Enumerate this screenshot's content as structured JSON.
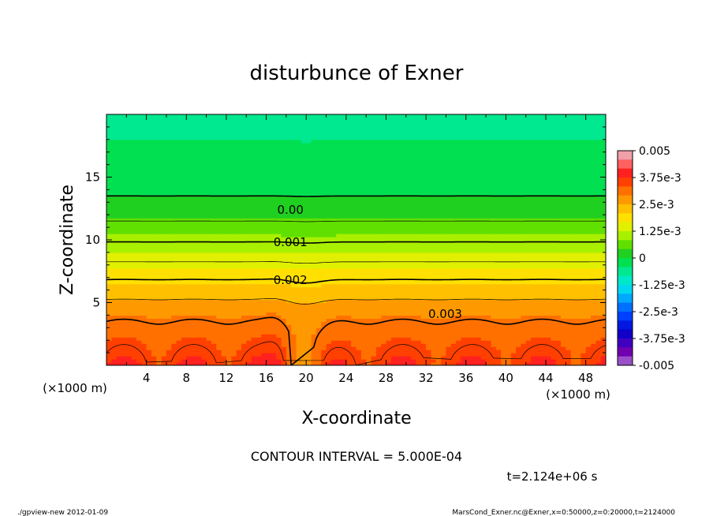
{
  "chart_data": {
    "type": "heatmap",
    "title": "disturbunce of Exner",
    "xlabel": "X-coordinate",
    "ylabel": "Z-coordinate",
    "x_unit": "(×1000 m)",
    "y_unit": "(×1000 m)",
    "xlim": [
      0,
      50
    ],
    "ylim": [
      0,
      20
    ],
    "x_ticks": [
      4,
      8,
      12,
      16,
      20,
      24,
      28,
      32,
      36,
      40,
      44,
      48
    ],
    "y_ticks": [
      5,
      10,
      15
    ],
    "contour_interval_text": "CONTOUR INTERVAL = 5.000E-04",
    "time_text": "t=2.124e+06 s",
    "contour_labels": [
      {
        "text": "0.00",
        "x": 17.0,
        "z": 12.4
      },
      {
        "text": "0.001",
        "x": 17.0,
        "z": 9.8
      },
      {
        "text": "0.002",
        "x": 17.0,
        "z": 6.8
      },
      {
        "text": "0.003",
        "x": 32.5,
        "z": 4.1
      }
    ],
    "colorbar": {
      "min": -0.005,
      "max": 0.005,
      "tick_labels": [
        "0.005",
        "3.75e-3",
        "2.5e-3",
        "1.25e-3",
        "0",
        "-1.25e-3",
        "-2.5e-3",
        "-3.75e-3",
        "-0.005"
      ],
      "colors": [
        "#f0a0a8",
        "#ff6060",
        "#ff2020",
        "#ff4000",
        "#ff7000",
        "#ff9900",
        "#ffc000",
        "#ffe000",
        "#e0f000",
        "#a8f000",
        "#60e000",
        "#20d020",
        "#00e050",
        "#00e890",
        "#00e8c8",
        "#00d8f0",
        "#00a8ff",
        "#0070ff",
        "#0040ff",
        "#0018e0",
        "#1000c8",
        "#4000c0",
        "#7000b0",
        "#9a50c8"
      ]
    },
    "profile": {
      "z": [
        0,
        1.5,
        2.5,
        3.5,
        4.5,
        5.5,
        6.5,
        7.5,
        8.5,
        9.5,
        10.5,
        11.5,
        12.5,
        13.5,
        15.5,
        17.5,
        20
      ],
      "value": [
        0.0037,
        0.0034,
        0.0032,
        0.003,
        0.0028,
        0.0024,
        0.0021,
        0.0018,
        0.0014,
        0.0011,
        0.0008,
        0.0005,
        0.0002,
        0.0,
        -0.0002,
        -0.0004,
        -0.0005
      ]
    }
  },
  "footer": {
    "left": "./gpview-new  2012-01-09",
    "right": "MarsCond_Exner.nc@Exner,x=0:50000,z=0:20000,t=2124000"
  }
}
